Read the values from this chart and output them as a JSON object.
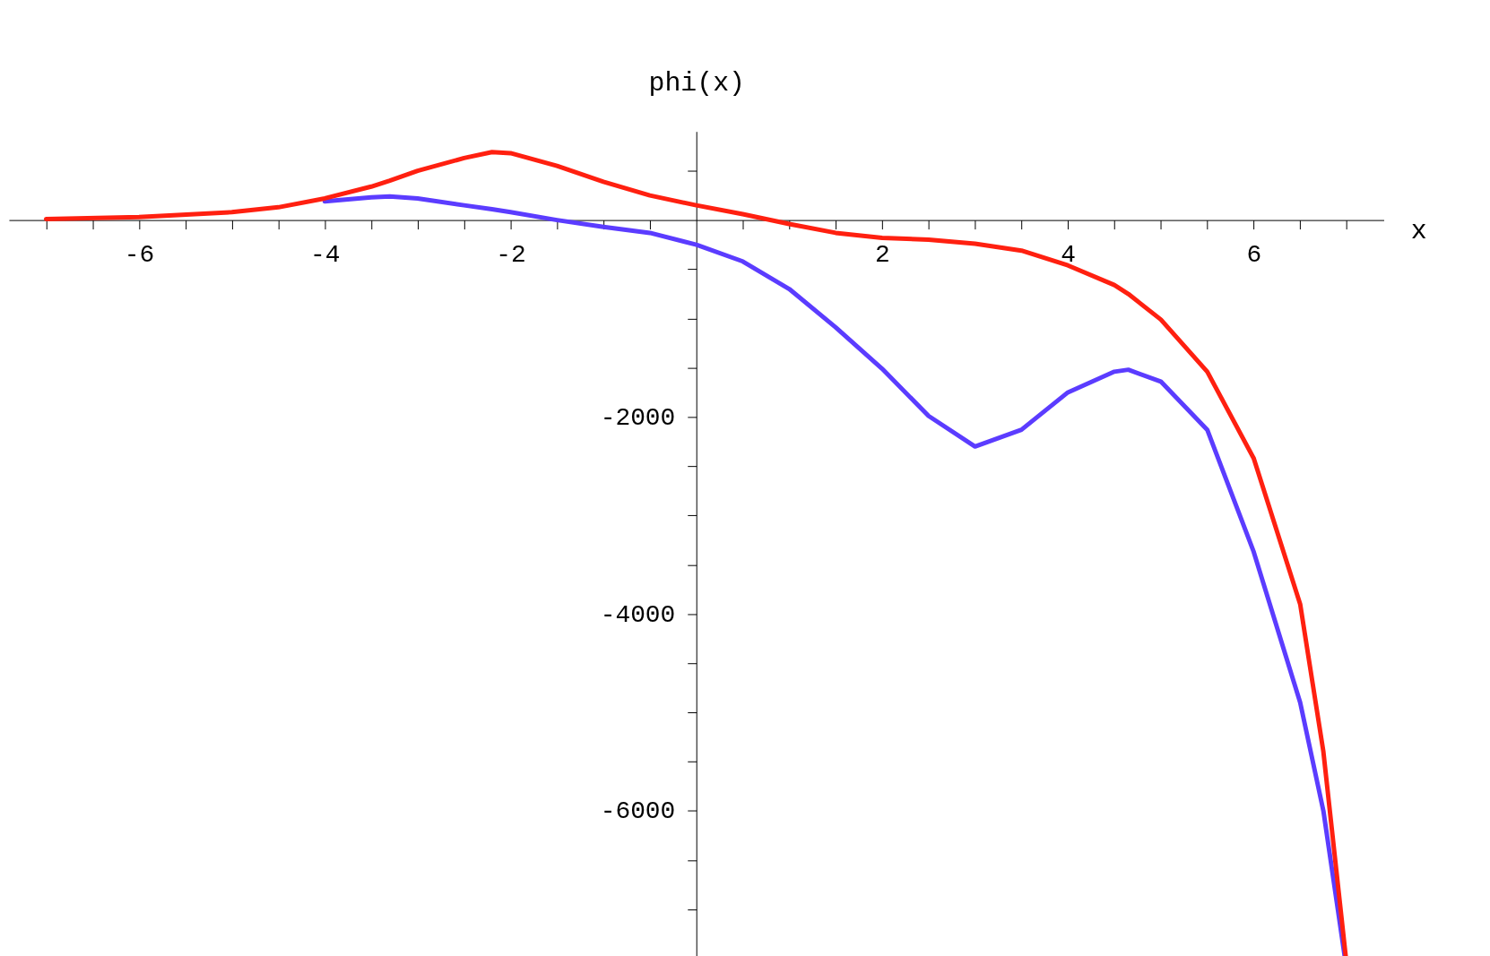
{
  "chart_data": {
    "type": "line",
    "xlabel": "x",
    "ylabel": "phi(x)",
    "x": [
      -7,
      -6,
      -5,
      -4.5,
      -4,
      -3.5,
      -3.3,
      -3,
      -2.5,
      -2.2,
      -2,
      -1.5,
      -1,
      -0.5,
      0,
      0.5,
      1,
      1.5,
      2,
      2.5,
      3,
      3.5,
      4,
      4.5,
      4.65,
      5,
      5.5,
      6,
      6.5,
      6.75,
      7
    ],
    "series": [
      {
        "color": "#5b3cff",
        "values": [
          null,
          null,
          null,
          null,
          190,
          230,
          240,
          220,
          150,
          110,
          80,
          0,
          -70,
          -130,
          -250,
          -420,
          -700,
          -1090,
          -1510,
          -1990,
          -2300,
          -2130,
          -1750,
          -1540,
          -1520,
          -1640,
          -2130,
          -3370,
          -4900,
          -6000,
          -7610
        ]
      },
      {
        "color": "#ff2010",
        "values": [
          10,
          30,
          80,
          130,
          220,
          340,
          400,
          500,
          630,
          690,
          680,
          550,
          390,
          250,
          150,
          60,
          -40,
          -130,
          -180,
          -200,
          -240,
          -310,
          -460,
          -660,
          -750,
          -1010,
          -1540,
          -2420,
          -3900,
          -5400,
          -7560
        ]
      }
    ],
    "xlim": [
      -7.4,
      7.4
    ],
    "ylim": [
      -7800,
      900
    ],
    "xticks": [
      {
        "value": -7,
        "label": null
      },
      {
        "value": -6.5,
        "label": null
      },
      -6,
      {
        "value": -5.5,
        "label": null
      },
      {
        "value": -5,
        "label": null
      },
      {
        "value": -4.5,
        "label": null
      },
      -4,
      {
        "value": -3.5,
        "label": null
      },
      {
        "value": -3,
        "label": null
      },
      {
        "value": -2.5,
        "label": null
      },
      -2,
      {
        "value": -1.5,
        "label": null
      },
      {
        "value": -1,
        "label": null
      },
      {
        "value": -0.5,
        "label": null
      },
      {
        "value": 0.5,
        "label": null
      },
      {
        "value": 1,
        "label": null
      },
      {
        "value": 1.5,
        "label": null
      },
      2,
      {
        "value": 2.5,
        "label": null
      },
      {
        "value": 3,
        "label": null
      },
      {
        "value": 3.5,
        "label": null
      },
      4,
      {
        "value": 4.5,
        "label": null
      },
      {
        "value": 5,
        "label": null
      },
      {
        "value": 5.5,
        "label": null
      },
      6,
      {
        "value": 6.5,
        "label": null
      },
      {
        "value": 7,
        "label": null
      }
    ],
    "yticks": [
      {
        "value": 500,
        "label": null
      },
      {
        "value": -500,
        "label": null
      },
      {
        "value": -1000,
        "label": null
      },
      {
        "value": -1500,
        "label": null
      },
      -2000,
      {
        "value": -2500,
        "label": null
      },
      {
        "value": -3000,
        "label": null
      },
      {
        "value": -3500,
        "label": null
      },
      -4000,
      {
        "value": -4500,
        "label": null
      },
      {
        "value": -5000,
        "label": null
      },
      {
        "value": -5500,
        "label": null
      },
      -6000,
      {
        "value": -6500,
        "label": null
      },
      {
        "value": -7000,
        "label": null
      },
      {
        "value": -7500,
        "label": null
      }
    ],
    "grid": false,
    "legend": false,
    "marker": "none",
    "line_style": "solid"
  }
}
